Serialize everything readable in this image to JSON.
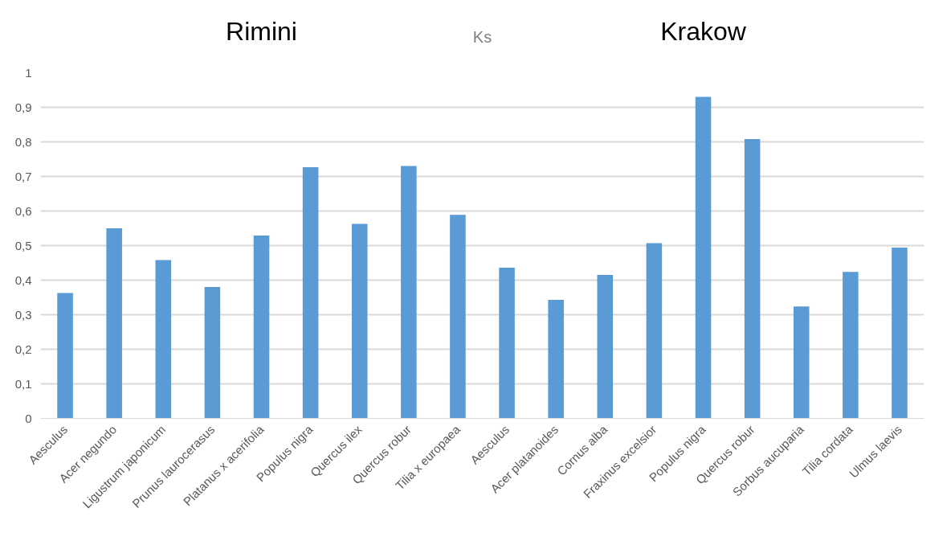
{
  "chart_data": {
    "type": "bar",
    "title": "Ks",
    "annotations": [
      "Rimini",
      "Krakow"
    ],
    "categories": [
      "Aesculus",
      "Acer negundo",
      "Ligustrum japonicum",
      "Prunus laurocerasus",
      "Platanus x acerifolia",
      "Populus nigra",
      "Quercus ilex",
      "Quercus robur",
      "Tilia x europaea",
      "Aesculus",
      "Acer platanoides",
      "Cornus alba",
      "Fraxinus excelsior",
      "Populus nigra",
      "Quercus robur",
      "Sorbus aucuparia",
      "Tilia cordata",
      "Ulmus laevis"
    ],
    "values": [
      0.363,
      0.55,
      0.458,
      0.38,
      0.529,
      0.727,
      0.563,
      0.73,
      0.589,
      0.436,
      0.343,
      0.415,
      0.507,
      0.93,
      0.808,
      0.324,
      0.424,
      0.494
    ],
    "color": "#5b9bd5",
    "ylim": [
      0,
      1
    ],
    "yticks": [
      0,
      {
        "value": 0.1,
        "label": "0,1"
      },
      {
        "value": 0.2,
        "label": "0,2"
      },
      {
        "value": 0.3,
        "label": "0,3"
      },
      {
        "value": 0.4,
        "label": "0,4"
      },
      {
        "value": 0.5,
        "label": "0,5"
      },
      {
        "value": 0.6,
        "label": "0,6"
      },
      {
        "value": 0.7,
        "label": "0,7"
      },
      {
        "value": 0.8,
        "label": "0,8"
      },
      {
        "value": 0.9,
        "label": "0,9"
      },
      1
    ],
    "grid": "y"
  }
}
